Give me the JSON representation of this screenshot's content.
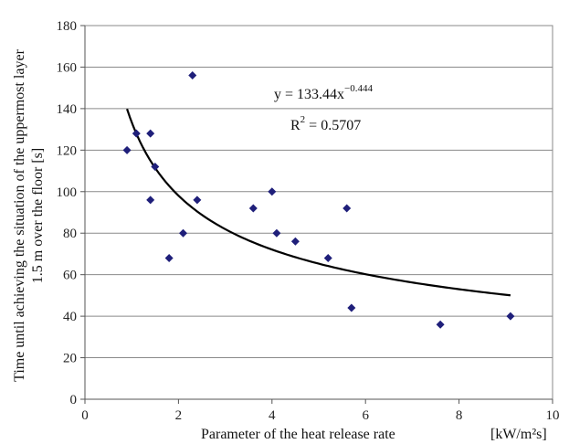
{
  "chart_data": {
    "type": "scatter",
    "xlabel": "Parameter of the heat release rate",
    "xunit": "[kW/m²s]",
    "ylabel_line1": "Time until achieving the situation of the uppermost layer",
    "ylabel_line2": "1.5 m over the floor [s]",
    "xlim": [
      0,
      10
    ],
    "ylim": [
      0,
      180
    ],
    "xticks": [
      0,
      2,
      4,
      6,
      8,
      10
    ],
    "yticks": [
      0,
      20,
      40,
      60,
      80,
      100,
      120,
      140,
      160,
      180
    ],
    "grid": "horizontal",
    "marker_color": "#1f1f7a",
    "curve_color": "#000000",
    "points": [
      {
        "x": 0.9,
        "y": 120
      },
      {
        "x": 1.1,
        "y": 128
      },
      {
        "x": 1.4,
        "y": 128
      },
      {
        "x": 1.5,
        "y": 112
      },
      {
        "x": 1.4,
        "y": 96
      },
      {
        "x": 1.8,
        "y": 68
      },
      {
        "x": 2.1,
        "y": 80
      },
      {
        "x": 2.3,
        "y": 156
      },
      {
        "x": 2.4,
        "y": 96
      },
      {
        "x": 3.6,
        "y": 92
      },
      {
        "x": 4.0,
        "y": 100
      },
      {
        "x": 4.1,
        "y": 80
      },
      {
        "x": 4.5,
        "y": 76
      },
      {
        "x": 5.2,
        "y": 68
      },
      {
        "x": 5.6,
        "y": 92
      },
      {
        "x": 5.7,
        "y": 44
      },
      {
        "x": 7.6,
        "y": 36
      },
      {
        "x": 9.1,
        "y": 40
      }
    ],
    "trendline": {
      "type": "power",
      "a": 133.44,
      "b": -0.444,
      "x_range": [
        0.9,
        9.1
      ]
    },
    "equation_text": "y = 133.44x",
    "equation_exponent": "−0.444",
    "r2_prefix": "R",
    "r2_exponent": "2",
    "r2_suffix": " = 0.5707"
  }
}
